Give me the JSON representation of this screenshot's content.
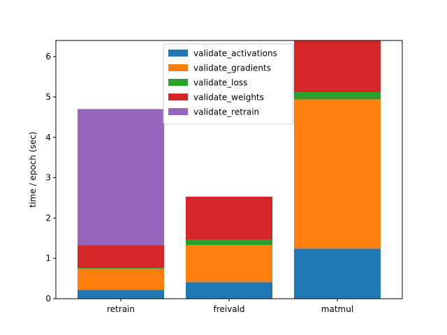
{
  "chart_data": {
    "type": "bar",
    "stacked": true,
    "title": "",
    "xlabel": "",
    "ylabel": "time / epoch (sec)",
    "categories": [
      "retrain",
      "freivald",
      "matmul"
    ],
    "ylim": [
      0,
      6.4
    ],
    "yticks": [
      0,
      1,
      2,
      3,
      4,
      5,
      6
    ],
    "grid": false,
    "legend_position": "top-center",
    "series": [
      {
        "name": "validate_activations",
        "color": "#1f77b4",
        "values": [
          0.22,
          0.41,
          1.24
        ]
      },
      {
        "name": "validate_gradients",
        "color": "#ff7f0e",
        "values": [
          0.52,
          0.92,
          3.7
        ]
      },
      {
        "name": "validate_loss",
        "color": "#2ca02c",
        "values": [
          0.02,
          0.14,
          0.18
        ]
      },
      {
        "name": "validate_weights",
        "color": "#d62728",
        "values": [
          0.57,
          1.06,
          1.38
        ]
      },
      {
        "name": "validate_retrain",
        "color": "#9467bd",
        "values": [
          3.37,
          0,
          0
        ]
      }
    ]
  }
}
